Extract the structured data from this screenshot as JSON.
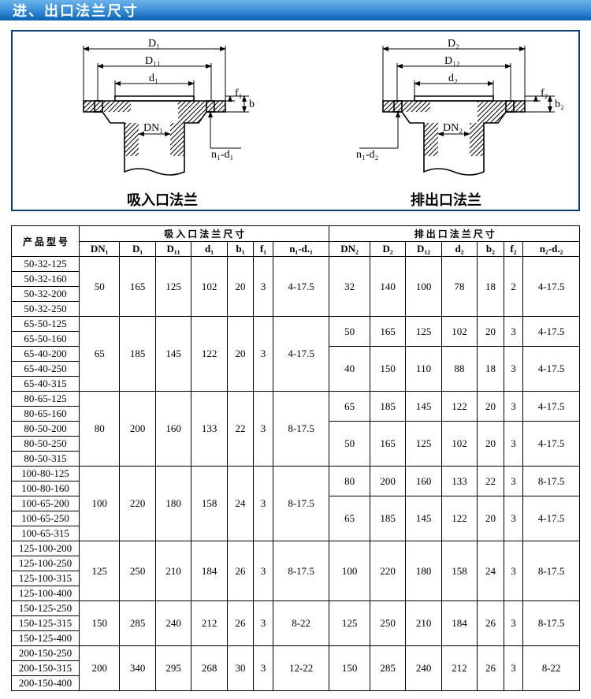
{
  "header": {
    "title": "进、出口法兰尺寸"
  },
  "diagrams": {
    "left": {
      "caption": "吸入口法兰",
      "labels": {
        "D": "D₁",
        "D1": "D₁₁",
        "d": "d₁",
        "DN": "DN₁",
        "f": "f₁",
        "b": "b",
        "nd": "n₁-d₁"
      }
    },
    "right": {
      "caption": "排出口法兰",
      "labels": {
        "D": "D₂",
        "D1": "D₁₂",
        "d": "d₂",
        "DN": "DN₂",
        "f": "f₂",
        "b": "b₂",
        "nd": "n₁-d₂"
      }
    }
  },
  "table": {
    "header": {
      "model": "产 品 型 号",
      "inlet": "吸 入 口 法 兰 尺 寸",
      "outlet": "排 出 口 法 兰 尺 寸",
      "cols_in": [
        "DN₁",
        "D₁",
        "D₁₁",
        "d₁",
        "b₁",
        "f₁",
        "n₁-d.₁"
      ],
      "cols_out": [
        "DN₂",
        "D₂",
        "D₁₂",
        "d₂",
        "b₂",
        "f₂",
        "n₂-d.₂"
      ]
    },
    "groups": [
      {
        "models": [
          "50-32-125",
          "50-32-160",
          "50-32-200",
          "50-32-250"
        ],
        "inlet": [
          "50",
          "165",
          "125",
          "102",
          "20",
          "3",
          "4-17.5"
        ],
        "outlet_rows": [
          {
            "span": 4,
            "vals": [
              "32",
              "140",
              "100",
              "78",
              "18",
              "2",
              "4-17.5"
            ]
          }
        ]
      },
      {
        "models": [
          "65-50-125",
          "65-50-160",
          "65-40-200",
          "65-40-250",
          "65-40-315"
        ],
        "inlet": [
          "65",
          "185",
          "145",
          "122",
          "20",
          "3",
          "4-17.5"
        ],
        "outlet_rows": [
          {
            "span": 2,
            "vals": [
              "50",
              "165",
              "125",
              "102",
              "20",
              "3",
              "4-17.5"
            ]
          },
          {
            "span": 3,
            "vals": [
              "40",
              "150",
              "110",
              "88",
              "18",
              "3",
              "4-17.5"
            ]
          }
        ]
      },
      {
        "models": [
          "80-65-125",
          "80-65-160",
          "80-50-200",
          "80-50-250",
          "80-50-315"
        ],
        "inlet": [
          "80",
          "200",
          "160",
          "133",
          "22",
          "3",
          "8-17.5"
        ],
        "outlet_rows": [
          {
            "span": 2,
            "vals": [
              "65",
              "185",
              "145",
              "122",
              "20",
              "3",
              "4-17.5"
            ]
          },
          {
            "span": 3,
            "vals": [
              "50",
              "165",
              "125",
              "102",
              "20",
              "3",
              "4-17.5"
            ]
          }
        ]
      },
      {
        "models": [
          "100-80-125",
          "100-80-160",
          "100-65-200",
          "100-65-250",
          "100-65-315"
        ],
        "inlet": [
          "100",
          "220",
          "180",
          "158",
          "24",
          "3",
          "8-17.5"
        ],
        "outlet_rows": [
          {
            "span": 2,
            "vals": [
              "80",
              "200",
              "160",
              "133",
              "22",
              "3",
              "8-17.5"
            ]
          },
          {
            "span": 3,
            "vals": [
              "65",
              "185",
              "145",
              "122",
              "20",
              "3",
              "4-17.5"
            ]
          }
        ]
      },
      {
        "models": [
          "125-100-200",
          "125-100-250",
          "125-100-315",
          "125-100-400"
        ],
        "inlet": [
          "125",
          "250",
          "210",
          "184",
          "26",
          "3",
          "8-17.5"
        ],
        "outlet_rows": [
          {
            "span": 4,
            "vals": [
              "100",
              "220",
              "180",
              "158",
              "24",
              "3",
              "8-17.5"
            ]
          }
        ]
      },
      {
        "models": [
          "150-125-250",
          "150-125-315",
          "150-125-400"
        ],
        "inlet": [
          "150",
          "285",
          "240",
          "212",
          "26",
          "3",
          "8-22"
        ],
        "outlet_rows": [
          {
            "span": 3,
            "vals": [
              "125",
              "250",
              "210",
              "184",
              "26",
              "3",
              "8-17.5"
            ]
          }
        ]
      },
      {
        "models": [
          "200-150-250",
          "200-150-315",
          "200-150-400"
        ],
        "inlet": [
          "200",
          "340",
          "295",
          "268",
          "30",
          "3",
          "12-22"
        ],
        "outlet_rows": [
          {
            "span": 3,
            "vals": [
              "150",
              "285",
              "240",
              "212",
              "26",
              "3",
              "8-22"
            ]
          }
        ]
      }
    ]
  }
}
